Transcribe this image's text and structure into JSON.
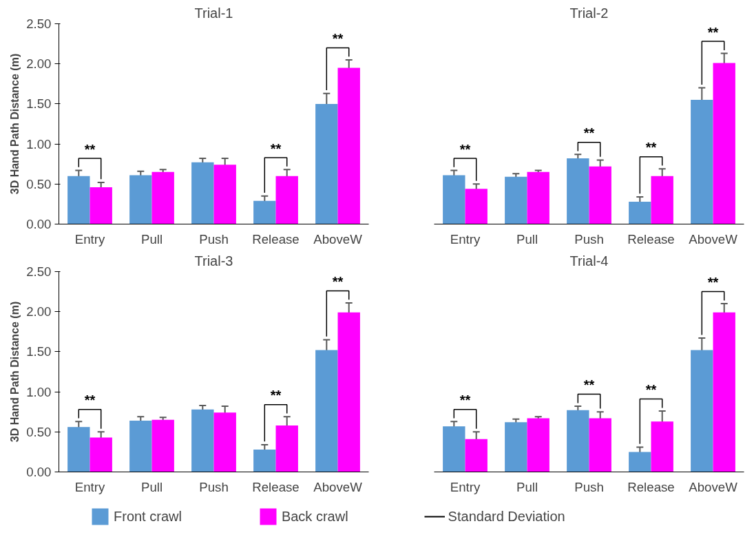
{
  "chart_data": [
    {
      "type": "bar",
      "title": "Trial-1",
      "ylabel": "3D Hand Path Distance (m)",
      "categories": [
        "Entry",
        "Pull",
        "Push",
        "Release",
        "AboveW"
      ],
      "ylim": [
        0,
        2.5
      ],
      "yticks": [
        {
          "value": 0,
          "label": "0.00"
        },
        {
          "value": 0.5,
          "label": "0.50"
        },
        {
          "value": 1,
          "label": "1.00"
        },
        {
          "value": 1.5,
          "label": "1.50"
        },
        {
          "value": 2,
          "label": "2.00"
        },
        {
          "value": 2.5,
          "label": "2.50"
        }
      ],
      "grid": false,
      "legend": false,
      "series": [
        {
          "color": "#5b9bd5",
          "values": [
            0.6,
            0.61,
            0.77,
            0.29,
            1.5
          ],
          "errors": [
            0.07,
            0.05,
            0.05,
            0.06,
            0.13
          ]
        },
        {
          "color": "#ff00ff",
          "values": [
            0.46,
            0.65,
            0.74,
            0.6,
            1.95
          ],
          "errors": [
            0.06,
            0.03,
            0.08,
            0.08,
            0.1
          ]
        }
      ],
      "annotations": [
        {
          "text": "**",
          "x": "Entry",
          "y": 0.6
        },
        {
          "text": "**",
          "x": "Release",
          "y": 0.6
        },
        {
          "text": "**",
          "x": "AboveW",
          "y": 1.95
        }
      ]
    },
    {
      "type": "bar",
      "title": "Trial-2",
      "categories": [
        "Entry",
        "Pull",
        "Push",
        "Release",
        "AboveW"
      ],
      "ylim": [
        0,
        2.5
      ],
      "yticks": [
        {
          "value": 0,
          "label": "0.00"
        },
        {
          "value": 0.5,
          "label": "0.50"
        },
        {
          "value": 1,
          "label": "1.00"
        },
        {
          "value": 1.5,
          "label": "1.50"
        },
        {
          "value": 2,
          "label": "2.00"
        },
        {
          "value": 2.5,
          "label": "2.50"
        }
      ],
      "tick_labels": "x",
      "grid": false,
      "legend": false,
      "series": [
        {
          "color": "#5b9bd5",
          "values": [
            0.61,
            0.59,
            0.82,
            0.28,
            1.55
          ],
          "errors": [
            0.06,
            0.04,
            0.05,
            0.06,
            0.15
          ]
        },
        {
          "color": "#ff00ff",
          "values": [
            0.44,
            0.65,
            0.72,
            0.6,
            2.01
          ],
          "errors": [
            0.06,
            0.02,
            0.08,
            0.09,
            0.12
          ]
        }
      ],
      "annotations": [
        {
          "text": "**",
          "x": "Entry",
          "y": 0.61
        },
        {
          "text": "**",
          "x": "Push",
          "y": 0.82
        },
        {
          "text": "**",
          "x": "Release",
          "y": 0.6
        },
        {
          "text": "**",
          "x": "AboveW",
          "y": 2.01
        }
      ]
    },
    {
      "type": "bar",
      "title": "Trial-3",
      "ylabel": "3D Hand Path Distance (m)",
      "categories": [
        "Entry",
        "Pull",
        "Push",
        "Release",
        "AboveW"
      ],
      "ylim": [
        0,
        2.5
      ],
      "yticks": [
        {
          "value": 0,
          "label": "0.00"
        },
        {
          "value": 0.5,
          "label": "0.50"
        },
        {
          "value": 1,
          "label": "1.00"
        },
        {
          "value": 1.5,
          "label": "1.50"
        },
        {
          "value": 2,
          "label": "2.00"
        },
        {
          "value": 2.5,
          "label": "2.50"
        }
      ],
      "grid": false,
      "legend": "bottom",
      "series": [
        {
          "name": "Front crawl",
          "color": "#5b9bd5",
          "values": [
            0.56,
            0.64,
            0.78,
            0.28,
            1.52
          ],
          "errors": [
            0.07,
            0.05,
            0.05,
            0.06,
            0.13
          ]
        },
        {
          "name": "Back crawl",
          "color": "#ff00ff",
          "values": [
            0.43,
            0.65,
            0.74,
            0.58,
            1.99
          ],
          "errors": [
            0.07,
            0.03,
            0.08,
            0.11,
            0.12
          ]
        }
      ],
      "annotations": [
        {
          "text": "**",
          "x": "Entry",
          "y": 0.56
        },
        {
          "text": "**",
          "x": "Release",
          "y": 0.58
        },
        {
          "text": "**",
          "x": "AboveW",
          "y": 1.99
        }
      ]
    },
    {
      "type": "bar",
      "title": "Trial-4",
      "categories": [
        "Entry",
        "Pull",
        "Push",
        "Release",
        "AboveW"
      ],
      "ylim": [
        0,
        2.5
      ],
      "yticks": [
        {
          "value": 0,
          "label": "0.00"
        },
        {
          "value": 0.5,
          "label": "0.50"
        },
        {
          "value": 1,
          "label": "1.00"
        },
        {
          "value": 1.5,
          "label": "1.50"
        },
        {
          "value": 2,
          "label": "2.00"
        },
        {
          "value": 2.5,
          "label": "2.50"
        }
      ],
      "tick_labels": "x",
      "grid": false,
      "series": [
        {
          "color": "#5b9bd5",
          "values": [
            0.57,
            0.62,
            0.77,
            0.25,
            1.52
          ],
          "errors": [
            0.06,
            0.04,
            0.05,
            0.06,
            0.15
          ]
        },
        {
          "color": "#ff00ff",
          "values": [
            0.41,
            0.67,
            0.67,
            0.63,
            1.99
          ],
          "errors": [
            0.09,
            0.02,
            0.08,
            0.13,
            0.11
          ]
        }
      ],
      "annotations": [
        {
          "text": "**",
          "x": "Entry",
          "y": 0.57
        },
        {
          "text": "**",
          "x": "Push",
          "y": 0.77
        },
        {
          "text": "**",
          "x": "Release",
          "y": 0.63
        },
        {
          "text": "**",
          "x": "AboveW",
          "y": 1.99
        },
        "Standard Deviation"
      ]
    }
  ]
}
